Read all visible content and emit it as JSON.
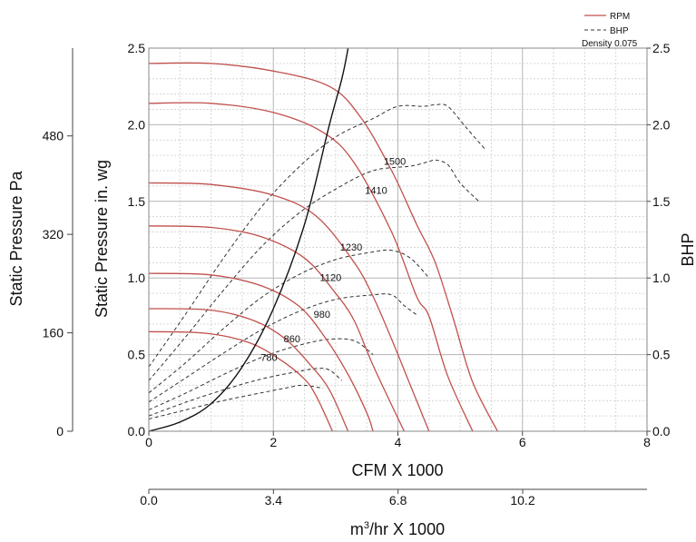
{
  "chart_data": {
    "type": "line",
    "axes": {
      "cfm_label": "CFM X 1000",
      "cfm_ticks": [
        "0",
        "2",
        "4",
        "6",
        "8"
      ],
      "xlim": [
        0,
        8
      ],
      "m3hr_label_main": "m",
      "m3hr_label_sup": "3",
      "m3hr_label_rest": "/hr X 1000",
      "m3hr_ticks": [
        "0.0",
        "3.4",
        "6.8",
        "10.2"
      ],
      "ylabel_inwg": "Static Pressure in. wg",
      "inwg_ticks": [
        "0.0",
        "0.5",
        "1.0",
        "1.5",
        "2.0",
        "2.5"
      ],
      "ylim": [
        0,
        2.5
      ],
      "ylabel_pa": "Static Pressure Pa",
      "pa_ticks": [
        "0",
        "160",
        "320",
        "480"
      ],
      "ylabel_bhp": "BHP",
      "bhp_ticks": [
        "0.0",
        "0.5",
        "1.0",
        "1.5",
        "2.0",
        "2.5"
      ],
      "grid": true
    },
    "legend": {
      "position": "top-right",
      "rpm_label": "RPM",
      "bhp_label": "BHP",
      "density_label": "Density 0.075"
    },
    "colors": {
      "rpm": "#c0504d",
      "bhp": "#333333",
      "system": "#111111",
      "grid": "#bfbfbf"
    },
    "rpm_curves": [
      {
        "rpm": "1500",
        "points": [
          [
            0,
            2.4
          ],
          [
            1,
            2.4
          ],
          [
            2,
            2.35
          ],
          [
            2.9,
            2.25
          ],
          [
            3.4,
            2.05
          ],
          [
            3.9,
            1.7
          ],
          [
            4.3,
            1.35
          ],
          [
            4.6,
            1.1
          ],
          [
            4.9,
            0.72
          ],
          [
            5.2,
            0.32
          ],
          [
            5.6,
            0.0
          ]
        ]
      },
      {
        "rpm": "1410",
        "points": [
          [
            0,
            2.14
          ],
          [
            1,
            2.14
          ],
          [
            2,
            2.08
          ],
          [
            2.8,
            1.95
          ],
          [
            3.3,
            1.75
          ],
          [
            3.9,
            1.3
          ],
          [
            4.3,
            0.88
          ],
          [
            4.5,
            0.75
          ],
          [
            4.8,
            0.36
          ],
          [
            5.2,
            0.0
          ]
        ]
      },
      {
        "rpm": "1230",
        "points": [
          [
            0,
            1.62
          ],
          [
            1,
            1.61
          ],
          [
            2,
            1.54
          ],
          [
            2.7,
            1.4
          ],
          [
            3.3,
            1.1
          ],
          [
            3.6,
            0.88
          ],
          [
            3.9,
            0.6
          ],
          [
            4.2,
            0.3
          ],
          [
            4.5,
            0.0
          ]
        ]
      },
      {
        "rpm": "1120",
        "points": [
          [
            0,
            1.34
          ],
          [
            1,
            1.33
          ],
          [
            1.8,
            1.27
          ],
          [
            2.5,
            1.13
          ],
          [
            3.0,
            0.9
          ],
          [
            3.3,
            0.72
          ],
          [
            3.6,
            0.43
          ],
          [
            4.1,
            0.0
          ]
        ]
      },
      {
        "rpm": "980",
        "points": [
          [
            0,
            1.03
          ],
          [
            1,
            1.02
          ],
          [
            1.8,
            0.95
          ],
          [
            2.4,
            0.82
          ],
          [
            2.8,
            0.63
          ],
          [
            3.2,
            0.37
          ],
          [
            3.5,
            0.12
          ],
          [
            3.6,
            0.0
          ]
        ]
      },
      {
        "rpm": "860",
        "points": [
          [
            0,
            0.8
          ],
          [
            1,
            0.79
          ],
          [
            1.7,
            0.72
          ],
          [
            2.2,
            0.6
          ],
          [
            2.6,
            0.43
          ],
          [
            2.9,
            0.27
          ],
          [
            3.2,
            0.0
          ]
        ]
      },
      {
        "rpm": "780",
        "points": [
          [
            0,
            0.65
          ],
          [
            0.9,
            0.64
          ],
          [
            1.6,
            0.58
          ],
          [
            2.1,
            0.47
          ],
          [
            2.5,
            0.34
          ],
          [
            2.7,
            0.22
          ],
          [
            2.95,
            0.0
          ]
        ]
      }
    ],
    "bhp_curves": [
      {
        "points": [
          [
            0,
            0.42
          ],
          [
            0.6,
            0.77
          ],
          [
            1.2,
            1.13
          ],
          [
            1.8,
            1.46
          ],
          [
            2.4,
            1.72
          ],
          [
            3.0,
            1.92
          ],
          [
            3.6,
            2.04
          ],
          [
            4.0,
            2.12
          ],
          [
            4.4,
            2.12
          ],
          [
            4.6,
            2.13
          ],
          [
            4.8,
            2.12
          ],
          [
            5.1,
            1.98
          ],
          [
            5.4,
            1.84
          ]
        ]
      },
      {
        "points": [
          [
            0,
            0.33
          ],
          [
            0.6,
            0.62
          ],
          [
            1.2,
            0.92
          ],
          [
            1.8,
            1.2
          ],
          [
            2.4,
            1.42
          ],
          [
            3.0,
            1.58
          ],
          [
            3.6,
            1.7
          ],
          [
            4.2,
            1.73
          ],
          [
            4.5,
            1.76
          ],
          [
            4.6,
            1.77
          ],
          [
            4.8,
            1.74
          ],
          [
            5.0,
            1.62
          ],
          [
            5.3,
            1.5
          ]
        ]
      },
      {
        "points": [
          [
            0,
            0.25
          ],
          [
            0.6,
            0.45
          ],
          [
            1.2,
            0.67
          ],
          [
            1.8,
            0.87
          ],
          [
            2.4,
            1.02
          ],
          [
            3.0,
            1.12
          ],
          [
            3.6,
            1.17
          ],
          [
            3.9,
            1.18
          ],
          [
            4.2,
            1.13
          ],
          [
            4.5,
            1.0
          ]
        ]
      },
      {
        "points": [
          [
            0,
            0.19
          ],
          [
            0.6,
            0.35
          ],
          [
            1.2,
            0.51
          ],
          [
            1.8,
            0.66
          ],
          [
            2.4,
            0.78
          ],
          [
            3.0,
            0.86
          ],
          [
            3.6,
            0.89
          ],
          [
            3.9,
            0.89
          ],
          [
            4.1,
            0.82
          ],
          [
            4.3,
            0.76
          ]
        ]
      },
      {
        "points": [
          [
            0,
            0.14
          ],
          [
            0.6,
            0.25
          ],
          [
            1.2,
            0.37
          ],
          [
            1.8,
            0.48
          ],
          [
            2.4,
            0.56
          ],
          [
            2.9,
            0.6
          ],
          [
            3.3,
            0.59
          ],
          [
            3.6,
            0.5
          ]
        ]
      },
      {
        "points": [
          [
            0,
            0.1
          ],
          [
            0.6,
            0.19
          ],
          [
            1.2,
            0.27
          ],
          [
            1.8,
            0.34
          ],
          [
            2.4,
            0.39
          ],
          [
            2.7,
            0.41
          ],
          [
            2.9,
            0.4
          ],
          [
            3.1,
            0.33
          ]
        ]
      },
      {
        "points": [
          [
            0,
            0.08
          ],
          [
            0.6,
            0.14
          ],
          [
            1.2,
            0.2
          ],
          [
            1.8,
            0.25
          ],
          [
            2.3,
            0.29
          ],
          [
            2.5,
            0.3
          ],
          [
            2.8,
            0.28
          ]
        ]
      }
    ],
    "rpm_labels": [
      {
        "text": "1500",
        "x": 3.95,
        "y": 1.74
      },
      {
        "text": "1410",
        "x": 3.65,
        "y": 1.55
      },
      {
        "text": "1230",
        "x": 3.25,
        "y": 1.18
      },
      {
        "text": "1120",
        "x": 2.92,
        "y": 0.98
      },
      {
        "text": "980",
        "x": 2.78,
        "y": 0.74
      },
      {
        "text": "860",
        "x": 2.3,
        "y": 0.58
      },
      {
        "text": "780",
        "x": 1.93,
        "y": 0.46
      }
    ],
    "system_curve": [
      [
        0,
        0
      ],
      [
        0.5,
        0.06
      ],
      [
        1.0,
        0.18
      ],
      [
        1.5,
        0.42
      ],
      [
        2.0,
        0.8
      ],
      [
        2.5,
        1.35
      ],
      [
        2.9,
        2.0
      ],
      [
        3.1,
        2.3
      ],
      [
        3.2,
        2.5
      ]
    ]
  }
}
